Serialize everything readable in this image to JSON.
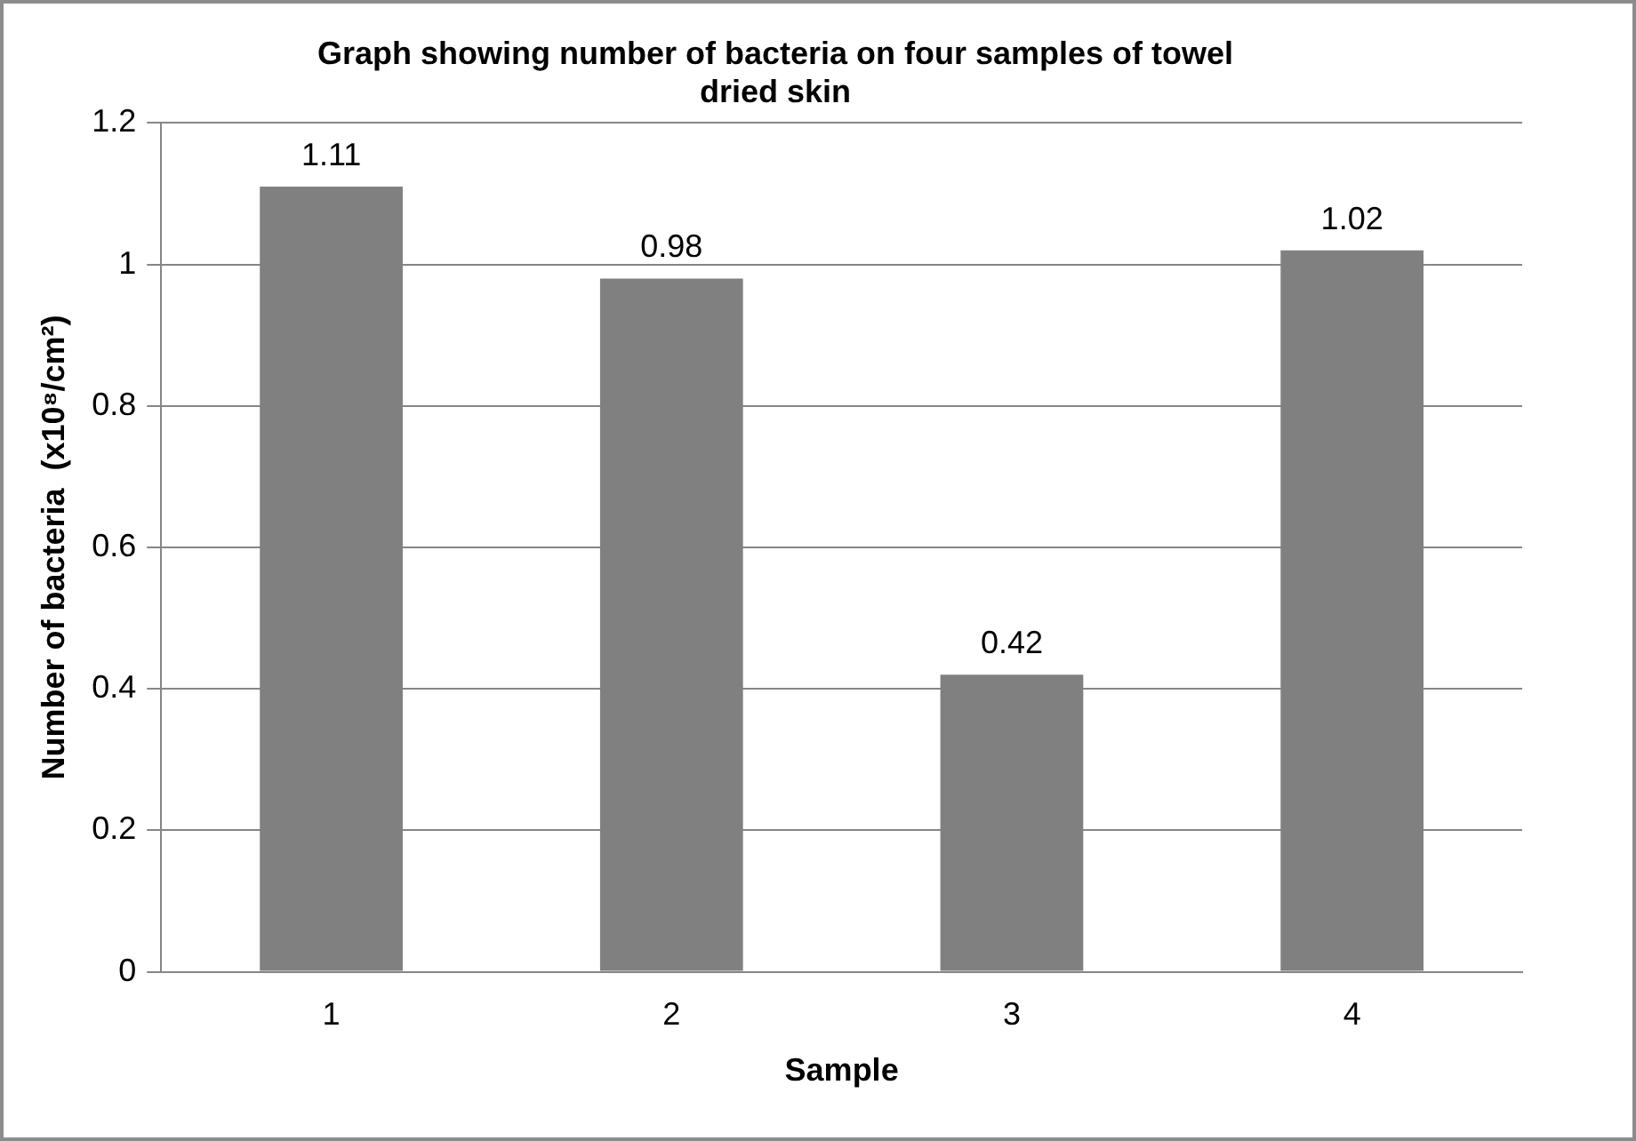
{
  "chart_data": {
    "type": "bar",
    "title": "Graph showing number of bacteria on four samples of towel dried skin",
    "xlabel": "Sample",
    "ylabel": "Number of bacteria  (x10⁸/cm²)",
    "categories": [
      "1",
      "2",
      "3",
      "4"
    ],
    "values": [
      1.11,
      0.98,
      0.42,
      1.02
    ],
    "color": "#808080",
    "ylim": [
      0,
      1.2
    ],
    "yticks": [
      0,
      0.2,
      0.4,
      0.6,
      0.8,
      1,
      1.2
    ],
    "grid": "y",
    "legend": false,
    "data_labels": true
  }
}
